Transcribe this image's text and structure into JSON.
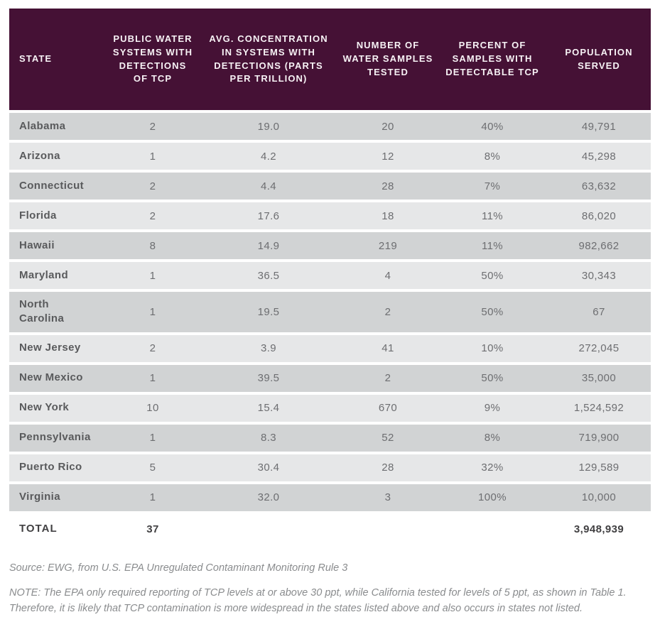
{
  "colors": {
    "header_background": "#451135",
    "row_dark": "#d1d3d4",
    "row_light": "#e6e7e8",
    "data_text": "#6d6e71",
    "total_text": "#414042",
    "note_text": "#8a8c8e"
  },
  "table": {
    "columns": [
      "STATE",
      "PUBLIC WATER SYSTEMS WITH DETECTIONS OF TCP",
      "AVG. CONCENTRATION IN SYSTEMS WITH DETECTIONS (PARTS PER TRILLION)",
      "NUMBER OF WATER SAMPLES TESTED",
      "PERCENT OF SAMPLES WITH DETECTABLE TCP",
      "POPULATION SERVED"
    ],
    "rows": [
      [
        "Alabama",
        "2",
        "19.0",
        "20",
        "40%",
        "49,791"
      ],
      [
        "Arizona",
        "1",
        "4.2",
        "12",
        "8%",
        "45,298"
      ],
      [
        "Connecticut",
        "2",
        "4.4",
        "28",
        "7%",
        "63,632"
      ],
      [
        "Florida",
        "2",
        "17.6",
        "18",
        "11%",
        "86,020"
      ],
      [
        "Hawaii",
        "8",
        "14.9",
        "219",
        "11%",
        "982,662"
      ],
      [
        "Maryland",
        "1",
        "36.5",
        "4",
        "50%",
        "30,343"
      ],
      [
        "North Carolina",
        "1",
        "19.5",
        "2",
        "50%",
        "67"
      ],
      [
        "New Jersey",
        "2",
        "3.9",
        "41",
        "10%",
        "272,045"
      ],
      [
        "New Mexico",
        "1",
        "39.5",
        "2",
        "50%",
        "35,000"
      ],
      [
        "New York",
        "10",
        "15.4",
        "670",
        "9%",
        "1,524,592"
      ],
      [
        "Pennsylvania",
        "1",
        "8.3",
        "52",
        "8%",
        "719,900"
      ],
      [
        "Puerto Rico",
        "5",
        "30.4",
        "28",
        "32%",
        "129,589"
      ],
      [
        "Virginia",
        "1",
        "32.0",
        "3",
        "100%",
        "10,000"
      ]
    ],
    "total": [
      "TOTAL",
      "37",
      "",
      "",
      "",
      "3,948,939"
    ]
  },
  "footer": {
    "source": "Source: EWG, from U.S. EPA Unregulated Contaminant Monitoring Rule 3",
    "note": "NOTE: The EPA only required reporting of TCP levels at or above 30 ppt, while California tested for levels of 5 ppt, as shown in Table 1. Therefore, it is likely that TCP contamination is more widespread in the states listed above and also occurs in states not listed."
  }
}
